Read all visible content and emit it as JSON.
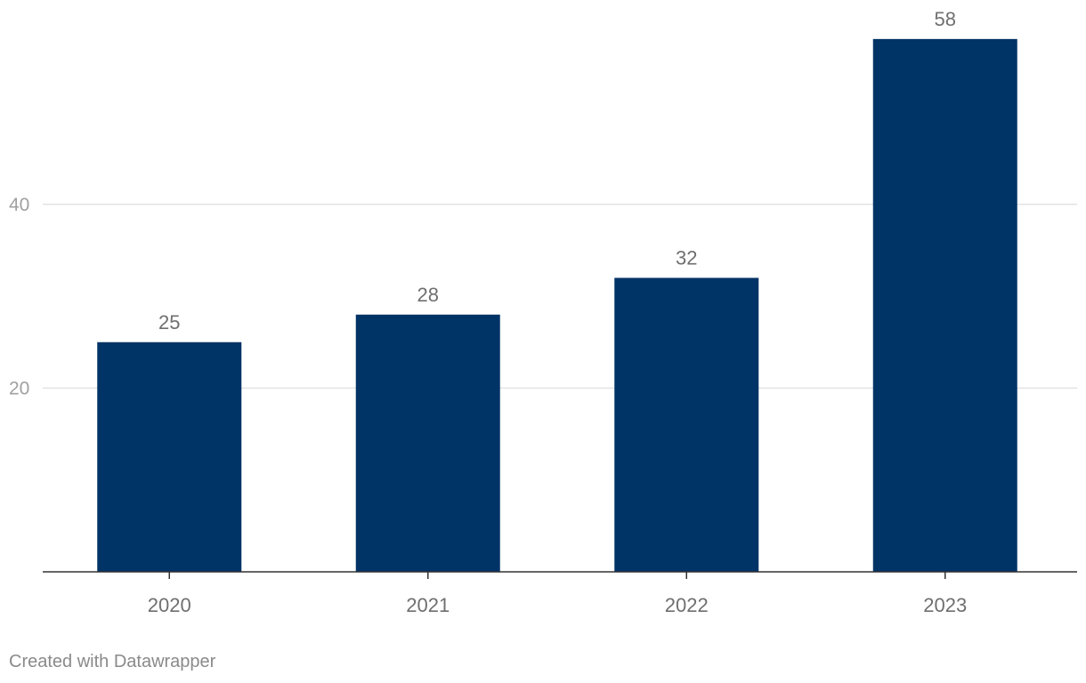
{
  "chart_data": {
    "type": "bar",
    "categories": [
      "2020",
      "2021",
      "2022",
      "2023"
    ],
    "values": [
      25,
      28,
      32,
      58
    ],
    "value_labels": [
      "25",
      "28",
      "32",
      "58"
    ],
    "yticks": [
      20,
      40
    ],
    "ylim": [
      0,
      58
    ],
    "grid": true,
    "bar_color": "#003366",
    "title": "",
    "xlabel": "",
    "ylabel": ""
  },
  "footer": {
    "credit": "Created with Datawrapper"
  }
}
